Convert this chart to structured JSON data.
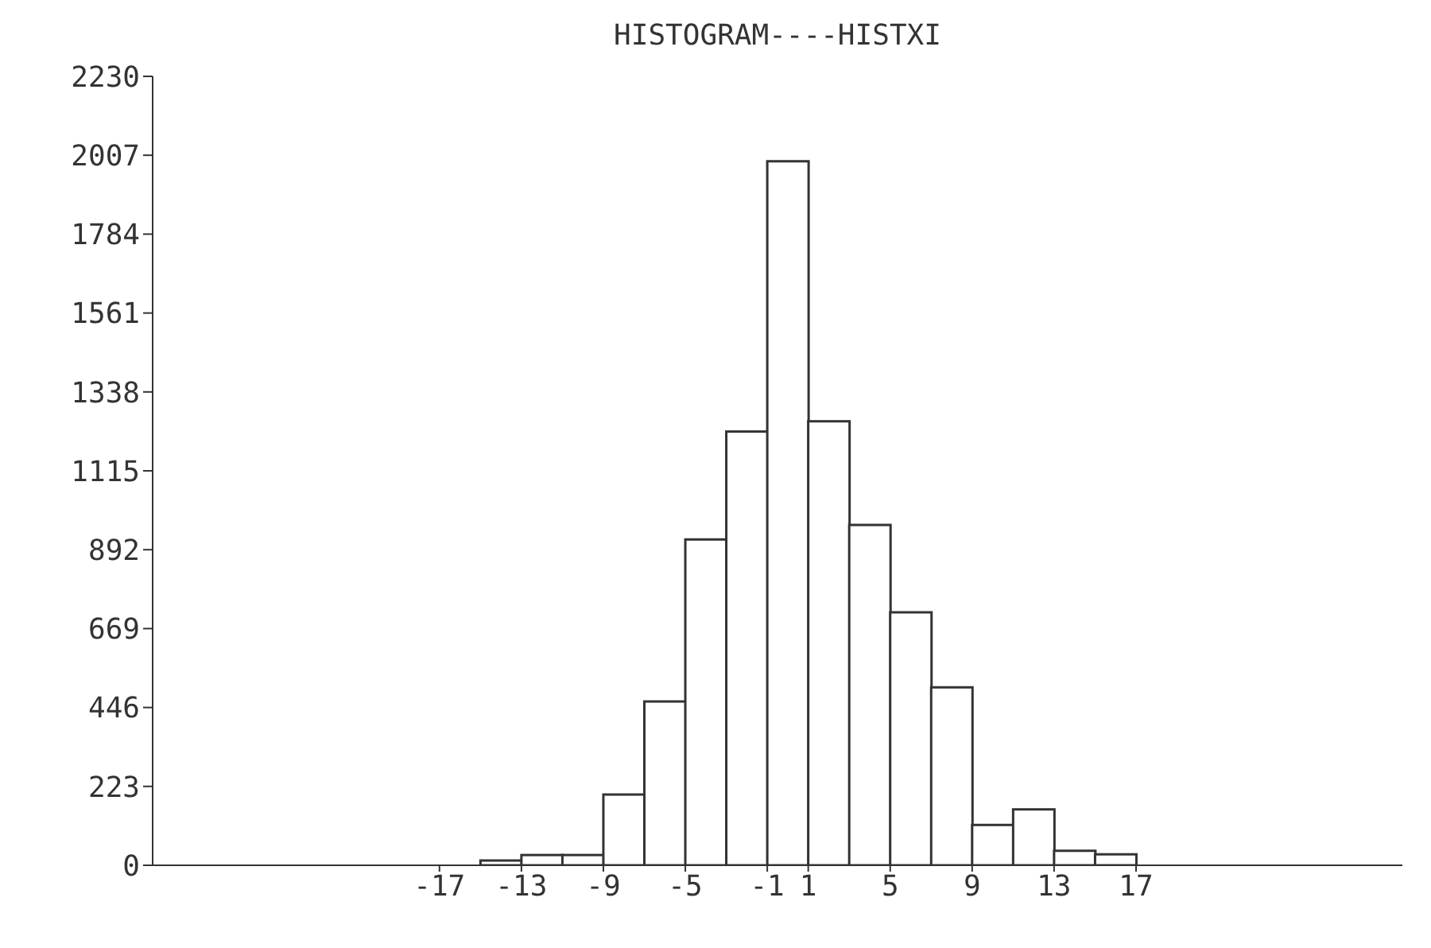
{
  "chart_data": {
    "type": "histogram",
    "title": "HISTOGRAM----HISTXI",
    "bins": [
      -15,
      -13,
      -11,
      -9,
      -7,
      -5,
      -3,
      -1,
      1,
      3,
      5,
      7,
      9,
      11,
      13,
      15,
      17
    ],
    "values": [
      12,
      29,
      29,
      200,
      463,
      921,
      1226,
      1990,
      1255,
      962,
      715,
      503,
      114,
      158,
      41,
      31
    ],
    "color": "#ffffff",
    "xlim": [
      -31,
      30
    ],
    "xticks": [
      -17,
      -13,
      -9,
      -5,
      -1,
      1,
      5,
      9,
      13,
      17
    ],
    "ylim": [
      0,
      2230
    ],
    "yticks": [
      0,
      223,
      446,
      669,
      892,
      1115,
      1338,
      1561,
      1784,
      2007,
      2230
    ],
    "grid": false
  }
}
